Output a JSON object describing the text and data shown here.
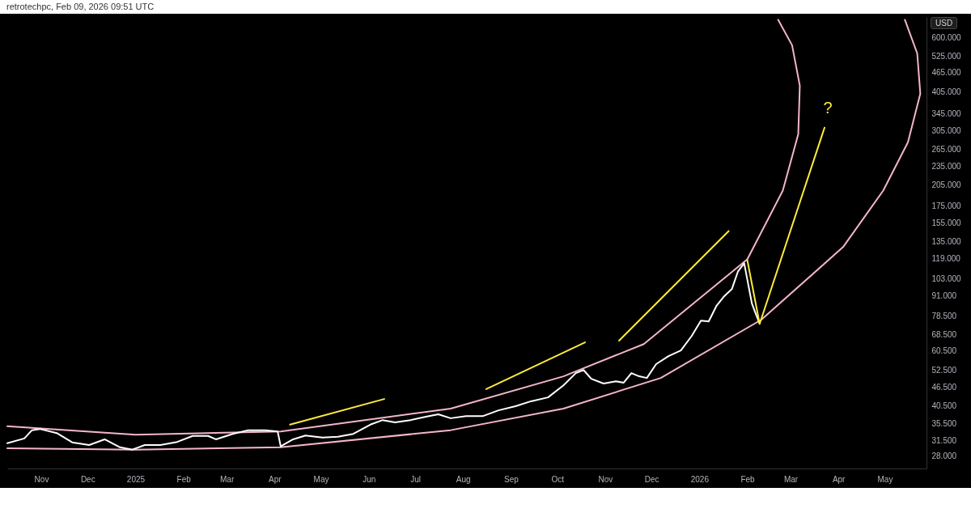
{
  "chart_data": {
    "type": "line",
    "ylabel": "USD",
    "log": "y",
    "annotations": [
      "retrotechpc, Feb 09, 2026 09:51 UTC",
      {
        "text": "?",
        "x": "2026-03-23",
        "y": 311100
      }
    ],
    "xlim": [
      "2024-10-10",
      "2026-05-28"
    ],
    "xticks": [
      {
        "value": "2024-11-01",
        "label": "Nov"
      },
      {
        "value": "2024-12-01",
        "label": "Dec"
      },
      {
        "value": "2025-01-01",
        "label": "2025"
      },
      {
        "value": "2025-02-01",
        "label": "Feb"
      },
      {
        "value": "2025-03-01",
        "label": "Mar"
      },
      {
        "value": "2025-04-01",
        "label": "Apr"
      },
      {
        "value": "2025-05-01",
        "label": "May"
      },
      {
        "value": "2025-06-01",
        "label": "Jun"
      },
      {
        "value": "2025-07-01",
        "label": "Jul"
      },
      {
        "value": "2025-08-01",
        "label": "Aug"
      },
      {
        "value": "2025-09-01",
        "label": "Sep"
      },
      {
        "value": "2025-10-01",
        "label": "Oct"
      },
      {
        "value": "2025-11-01",
        "label": "Nov"
      },
      {
        "value": "2025-12-01",
        "label": "Dec"
      },
      {
        "value": "2026-01-01",
        "label": "2026"
      },
      {
        "value": "2026-02-01",
        "label": "Feb"
      },
      {
        "value": "2026-03-01",
        "label": "Mar"
      },
      {
        "value": "2026-04-01",
        "label": "Apr"
      },
      {
        "value": "2026-05-01",
        "label": "May"
      }
    ],
    "ylim": [
      25600,
      700000
    ],
    "yticks": [
      {
        "value": 28000,
        "label": "28.000"
      },
      {
        "value": 31500,
        "label": "31.500"
      },
      {
        "value": 35500,
        "label": "35.500"
      },
      {
        "value": 40500,
        "label": "40.500"
      },
      {
        "value": 46500,
        "label": "46.500"
      },
      {
        "value": 52500,
        "label": "52.500"
      },
      {
        "value": 60500,
        "label": "60.500"
      },
      {
        "value": 68500,
        "label": "68.500"
      },
      {
        "value": 78500,
        "label": "78.500"
      },
      {
        "value": 91000,
        "label": "91.000"
      },
      {
        "value": 103000,
        "label": "103.000"
      },
      {
        "value": 119000,
        "label": "119.000"
      },
      {
        "value": 135000,
        "label": "135.000"
      },
      {
        "value": 155000,
        "label": "155.000"
      },
      {
        "value": 175000,
        "label": "175.000"
      },
      {
        "value": 205000,
        "label": "205.000"
      },
      {
        "value": 235000,
        "label": "235.000"
      },
      {
        "value": 265000,
        "label": "265.000"
      },
      {
        "value": 305000,
        "label": "305.000"
      },
      {
        "value": 345000,
        "label": "345.000"
      },
      {
        "value": 405000,
        "label": "405.000"
      },
      {
        "value": 465000,
        "label": "465.000"
      },
      {
        "value": 525000,
        "label": "525.000"
      },
      {
        "value": 600000,
        "label": "600.000"
      }
    ],
    "series": [
      {
        "type": "line",
        "color": "#f4b6c8",
        "x": [
          "2024-10-10",
          "2025-01-01",
          "2025-04-05",
          "2025-07-24",
          "2025-10-05",
          "2025-12-07",
          "2026-02-10",
          "2026-04-04",
          "2026-04-30",
          "2026-05-16",
          "2026-05-24",
          "2026-05-22",
          "2026-05-14"
        ],
        "values": [
          29700,
          29400,
          29900,
          33900,
          39700,
          49700,
          76100,
          129700,
          196200,
          279700,
          399000,
          536000,
          686000
        ]
      },
      {
        "type": "line",
        "color": "#f4b6c8",
        "x": [
          "2024-10-10",
          "2025-01-01",
          "2025-04-05",
          "2025-07-24",
          "2025-10-05",
          "2025-11-26",
          "2026-02-01",
          "2026-02-24",
          "2026-03-06",
          "2026-03-07",
          "2026-03-02",
          "2026-02-21"
        ],
        "values": [
          34900,
          32800,
          33600,
          39700,
          50300,
          63700,
          118600,
          196200,
          296800,
          423300,
          569200,
          686000
        ]
      },
      {
        "type": "line",
        "color": "#ffffff",
        "x": [
          "2024-10-10",
          "2024-10-21",
          "2024-10-26",
          "2024-10-31",
          "2024-11-11",
          "2024-11-21",
          "2024-12-02",
          "2024-12-12",
          "2024-12-22",
          "2024-12-30",
          "2025-01-07",
          "2025-01-17",
          "2025-01-28",
          "2025-02-07",
          "2025-02-17",
          "2025-02-22",
          "2025-03-05",
          "2025-03-15",
          "2025-03-26",
          "2025-04-03",
          "2025-04-05",
          "2025-04-13",
          "2025-04-21",
          "2025-05-02",
          "2025-05-12",
          "2025-05-22",
          "2025-06-02",
          "2025-06-10",
          "2025-06-18",
          "2025-06-28",
          "2025-07-08",
          "2025-07-16",
          "2025-07-24",
          "2025-08-03",
          "2025-08-14",
          "2025-08-24",
          "2025-09-04",
          "2025-09-14",
          "2025-09-25",
          "2025-10-05",
          "2025-10-13",
          "2025-10-18",
          "2025-10-23",
          "2025-10-31",
          "2025-11-08",
          "2025-11-13",
          "2025-11-18",
          "2025-11-23",
          "2025-11-28",
          "2025-12-04",
          "2025-12-12",
          "2025-12-20",
          "2025-12-27",
          "2026-01-02",
          "2026-01-07",
          "2026-01-12",
          "2026-01-17",
          "2026-01-22",
          "2026-01-26",
          "2026-01-30",
          "2026-02-01",
          "2026-02-04",
          "2026-02-06",
          "2026-02-09"
        ],
        "values": [
          30800,
          31900,
          33900,
          34200,
          33200,
          31000,
          30400,
          31700,
          29900,
          29400,
          30400,
          30400,
          31100,
          32500,
          32500,
          31700,
          33000,
          33900,
          33900,
          33600,
          30100,
          31700,
          32600,
          32100,
          32300,
          33000,
          35300,
          36500,
          35900,
          36500,
          37400,
          38100,
          37000,
          37600,
          37600,
          39200,
          40400,
          41900,
          43100,
          47100,
          51500,
          52700,
          49400,
          47700,
          48500,
          48000,
          51500,
          50300,
          49700,
          55000,
          58300,
          60800,
          67600,
          75700,
          75200,
          84200,
          90400,
          95300,
          108600,
          115200,
          102300,
          85700,
          80700,
          73900
        ]
      },
      {
        "type": "line",
        "color": "#ffeb3b",
        "x": [
          "2025-04-11",
          "2025-06-11"
        ],
        "values": [
          35300,
          42600
        ]
      },
      {
        "type": "line",
        "color": "#ffeb3b",
        "x": [
          "2025-08-16",
          "2025-10-19"
        ],
        "values": [
          45800,
          64500
        ]
      },
      {
        "type": "line",
        "color": "#ffeb3b",
        "x": [
          "2025-11-10",
          "2026-01-20"
        ],
        "values": [
          65300,
          145900
        ]
      },
      {
        "type": "line",
        "color": "#ffeb3b",
        "x": [
          "2026-02-01",
          "2026-02-09",
          "2026-03-23"
        ],
        "values": [
          117900,
          73900,
          311100
        ]
      }
    ]
  }
}
